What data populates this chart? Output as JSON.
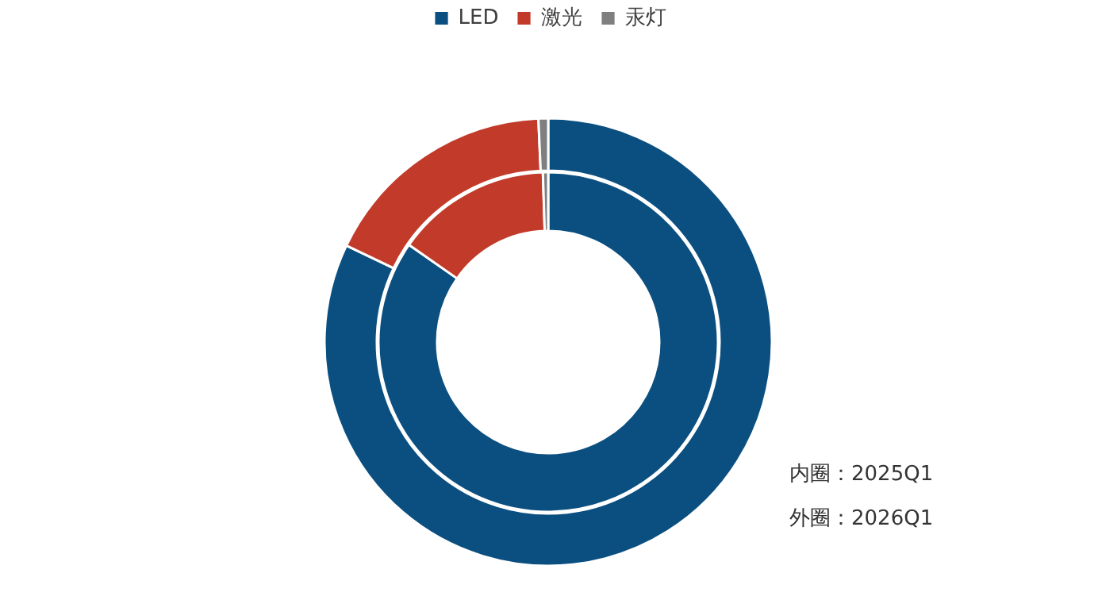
{
  "chart_data": {
    "type": "donut",
    "categories": [
      "LED",
      "激光",
      "汞灯"
    ],
    "colors": [
      "#0b4f80",
      "#c23a2a",
      "#7f7f7f"
    ],
    "series": [
      {
        "values": [
          84.7,
          14.8,
          0.5
        ]
      },
      {
        "values": [
          82.1,
          17.2,
          0.7
        ]
      }
    ],
    "legend": "top",
    "annotations": [
      "内圈：2025Q1",
      "外圈：2026Q1"
    ]
  }
}
